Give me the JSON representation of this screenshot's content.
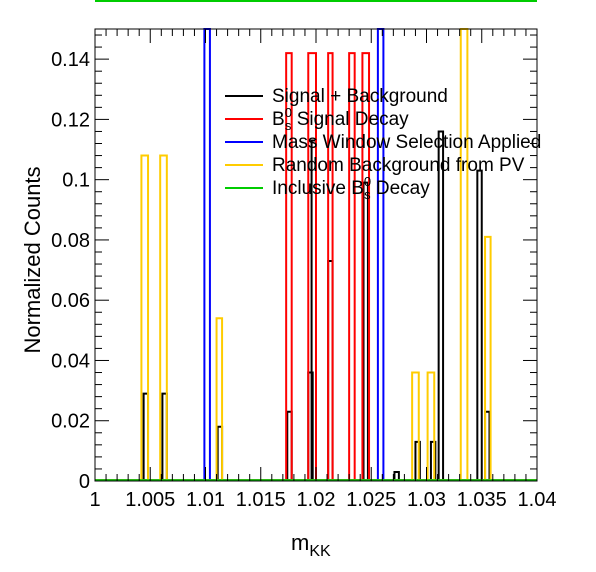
{
  "chart_data": {
    "type": "histogram",
    "xlabel": "m",
    "xlabel_sub": "KK",
    "ylabel": "Normalized Counts",
    "xlim": [
      1.0,
      1.04
    ],
    "ylim": [
      0,
      0.15
    ],
    "x_ticks": [
      {
        "v": 1.0,
        "label": "1"
      },
      {
        "v": 1.005,
        "label": "1.005"
      },
      {
        "v": 1.01,
        "label": "1.01"
      },
      {
        "v": 1.015,
        "label": "1.015"
      },
      {
        "v": 1.02,
        "label": "1.02"
      },
      {
        "v": 1.025,
        "label": "1.025"
      },
      {
        "v": 1.03,
        "label": "1.03"
      },
      {
        "v": 1.035,
        "label": "1.035"
      },
      {
        "v": 1.04,
        "label": "1.04"
      }
    ],
    "y_ticks": [
      {
        "v": 0,
        "label": "0"
      },
      {
        "v": 0.02,
        "label": "0.02"
      },
      {
        "v": 0.04,
        "label": "0.04"
      },
      {
        "v": 0.06,
        "label": "0.06"
      },
      {
        "v": 0.08,
        "label": "0.08"
      },
      {
        "v": 0.1,
        "label": "0.1"
      },
      {
        "v": 0.12,
        "label": "0.12"
      },
      {
        "v": 0.14,
        "label": "0.14"
      }
    ],
    "legend": [
      {
        "label": "Signal + Background",
        "color": "#000000"
      },
      {
        "label": "B",
        "sup": "0",
        "sub": "s",
        "suffix": " Signal Decay",
        "color": "#ff0000"
      },
      {
        "label": "Mass Window Selection Applied",
        "color": "#0000ff"
      },
      {
        "label": "Random Background from PV",
        "color": "#ffcc00"
      },
      {
        "label": "Inclusive B",
        "sup": "0",
        "sub": "s",
        "suffix": " Decay",
        "color": "#00cc00"
      }
    ],
    "series": [
      {
        "color": "#000000",
        "bars": [
          [
            1.0044,
            1.0048,
            0.029
          ],
          [
            1.0061,
            1.0065,
            0.029
          ],
          [
            1.0111,
            1.0115,
            0.018
          ],
          [
            1.0174,
            1.0178,
            0.023
          ],
          [
            1.0193,
            1.0197,
            0.036
          ],
          [
            1.0196,
            1.02,
            0.113
          ],
          [
            1.0211,
            1.0215,
            0.073
          ],
          [
            1.0243,
            1.0247,
            0.099
          ],
          [
            1.0271,
            1.0275,
            0.003
          ],
          [
            1.029,
            1.0294,
            0.013
          ],
          [
            1.0304,
            1.0308,
            0.013
          ],
          [
            1.0311,
            1.0315,
            0.116
          ],
          [
            1.0346,
            1.035,
            0.103
          ],
          [
            1.0353,
            1.0357,
            0.023
          ]
        ]
      },
      {
        "color": "#ff0000",
        "bars": [
          [
            1.0173,
            1.0178,
            0.142
          ],
          [
            1.0193,
            1.02,
            0.142
          ],
          [
            1.0211,
            1.0215,
            0.142
          ],
          [
            1.023,
            1.0235,
            0.142
          ],
          [
            1.0242,
            1.0248,
            0.142
          ]
        ]
      },
      {
        "color": "#0000ff",
        "bars": [
          [
            1.0099,
            1.0104,
            0.15
          ],
          [
            1.0256,
            1.0261,
            0.15
          ]
        ]
      },
      {
        "color": "#ffcc00",
        "bars": [
          [
            1.0042,
            1.0048,
            0.108
          ],
          [
            1.0059,
            1.0065,
            0.108
          ],
          [
            1.011,
            1.0115,
            0.054
          ],
          [
            1.0287,
            1.0293,
            0.036
          ],
          [
            1.0301,
            1.0307,
            0.036
          ],
          [
            1.0331,
            1.0337,
            0.15
          ],
          [
            1.0353,
            1.0358,
            0.081
          ]
        ]
      },
      {
        "color": "#00cc00",
        "bars": []
      }
    ],
    "grid": false
  }
}
